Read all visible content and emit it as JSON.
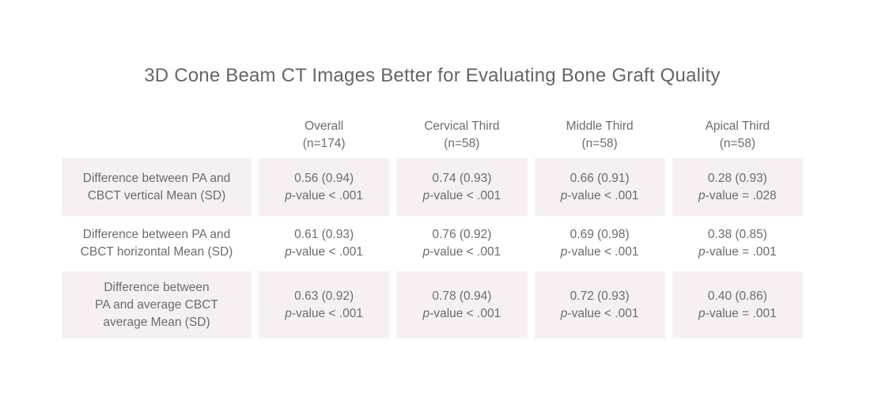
{
  "title": "3D Cone Beam CT Images Better for Evaluating Bone Graft Quality",
  "labels": {
    "p": "p"
  },
  "colors": {
    "shaded_row_bg": "#f7f0f3",
    "text": "#6b6c6f",
    "page_bg": "#ffffff"
  },
  "table": {
    "headers": [
      "Overall\n(n=174)",
      "Cervical Third\n(n=58)",
      "Middle Third\n(n=58)",
      "Apical Third\n(n=58)"
    ],
    "rows": [
      {
        "label": "Difference between PA and\nCBCT vertical Mean (SD)",
        "cells": [
          {
            "value": "0.56 (0.94)",
            "p": "-value < .001"
          },
          {
            "value": "0.74 (0.93)",
            "p": "-value < .001"
          },
          {
            "value": "0.66 (0.91)",
            "p": "-value < .001"
          },
          {
            "value": "0.28 (0.93)",
            "p": "-value = .028"
          }
        ]
      },
      {
        "label": "Difference between PA and\nCBCT horizontal Mean (SD)",
        "cells": [
          {
            "value": "0.61 (0.93)",
            "p": "-value < .001"
          },
          {
            "value": "0.76 (0.92)",
            "p": "-value < .001"
          },
          {
            "value": "0.69 (0.98)",
            "p": "-value < .001"
          },
          {
            "value": "0.38 (0.85)",
            "p": "-value = .001"
          }
        ]
      },
      {
        "label": "Difference between\nPA and average CBCT\naverage Mean (SD)",
        "cells": [
          {
            "value": "0.63 (0.92)",
            "p": "-value < .001"
          },
          {
            "value": "0.78 (0.94)",
            "p": "-value < .001"
          },
          {
            "value": "0.72 (0.93)",
            "p": "-value < .001"
          },
          {
            "value": "0.40 (0.86)",
            "p": "-value = .001"
          }
        ]
      }
    ]
  },
  "chart_data": {
    "type": "table",
    "title": "3D Cone Beam CT Images Better for Evaluating Bone Graft Quality",
    "columns": [
      "Overall (n=174)",
      "Cervical Third (n=58)",
      "Middle Third (n=58)",
      "Apical Third (n=58)"
    ],
    "rows": [
      {
        "label": "Difference between PA and CBCT vertical Mean (SD)",
        "cells": [
          {
            "mean": 0.56,
            "sd": 0.94,
            "p": "< .001"
          },
          {
            "mean": 0.74,
            "sd": 0.93,
            "p": "< .001"
          },
          {
            "mean": 0.66,
            "sd": 0.91,
            "p": "< .001"
          },
          {
            "mean": 0.28,
            "sd": 0.93,
            "p": "= .028"
          }
        ]
      },
      {
        "label": "Difference between PA and CBCT horizontal Mean (SD)",
        "cells": [
          {
            "mean": 0.61,
            "sd": 0.93,
            "p": "< .001"
          },
          {
            "mean": 0.76,
            "sd": 0.92,
            "p": "< .001"
          },
          {
            "mean": 0.69,
            "sd": 0.98,
            "p": "< .001"
          },
          {
            "mean": 0.38,
            "sd": 0.85,
            "p": "= .001"
          }
        ]
      },
      {
        "label": "Difference between PA and average CBCT average Mean (SD)",
        "cells": [
          {
            "mean": 0.63,
            "sd": 0.92,
            "p": "< .001"
          },
          {
            "mean": 0.78,
            "sd": 0.94,
            "p": "< .001"
          },
          {
            "mean": 0.72,
            "sd": 0.93,
            "p": "< .001"
          },
          {
            "mean": 0.4,
            "sd": 0.86,
            "p": "= .001"
          }
        ]
      }
    ],
    "layout": {
      "shaded_rows": [
        0,
        2
      ],
      "gridlines": false,
      "legend": "none"
    }
  }
}
